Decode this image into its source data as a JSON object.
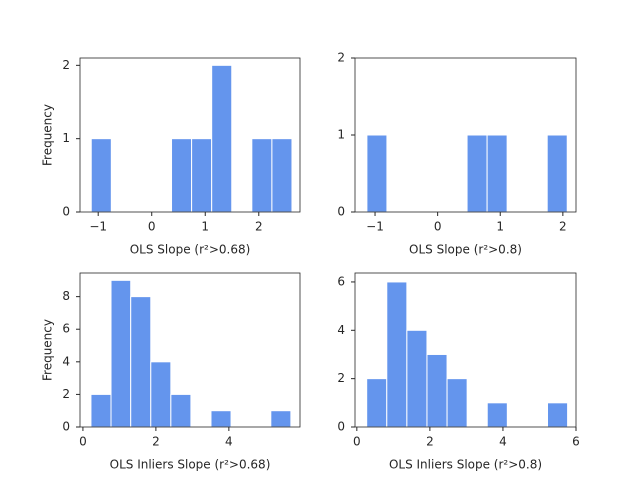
{
  "chart_data": [
    {
      "type": "histogram",
      "xlabel": "OLS Slope (r²>0.68)",
      "ylabel": "Frequency",
      "color": "#6495ed",
      "bins": [
        -1.13,
        -0.755,
        -0.38,
        -0.005,
        0.37,
        0.745,
        1.12,
        1.495,
        1.87,
        2.245,
        2.62
      ],
      "counts": [
        1,
        0,
        0,
        0,
        1,
        1,
        2,
        0,
        1,
        1
      ],
      "xlim": [
        -1.34,
        2.77
      ],
      "ylim": [
        0,
        2.1
      ],
      "xticks": [
        {
          "value": -1,
          "label": "−1"
        },
        0,
        1,
        2
      ],
      "yticks": [
        0,
        1,
        2
      ]
    },
    {
      "type": "histogram",
      "xlabel": "OLS Slope (r²>0.8)",
      "color": "#6495ed",
      "bins": [
        -1.13,
        -0.81,
        -0.49,
        -0.17,
        0.15,
        0.47,
        0.79,
        1.11,
        1.43,
        1.75,
        2.07
      ],
      "counts": [
        1,
        0,
        0,
        0,
        0,
        1,
        1,
        0,
        0,
        1
      ],
      "xlim": [
        -1.32,
        2.21
      ],
      "ylim": [
        0,
        2
      ],
      "xticks": [
        {
          "value": -1,
          "label": "−1"
        },
        0,
        1,
        2
      ],
      "yticks": [
        0,
        1,
        2
      ]
    },
    {
      "type": "histogram",
      "xlabel": "OLS Inliers Slope (r²>0.68)",
      "ylabel": "Frequency",
      "color": "#6495ed",
      "bins": [
        0.22,
        0.77,
        1.31,
        1.86,
        2.41,
        2.96,
        3.51,
        4.06,
        4.6,
        5.15,
        5.7
      ],
      "counts": [
        2,
        9,
        8,
        4,
        2,
        0,
        1,
        0,
        0,
        1
      ],
      "xlim": [
        -0.08,
        5.95
      ],
      "ylim": [
        0,
        9.45
      ],
      "xticks": [
        0,
        2,
        4
      ],
      "yticks": [
        0,
        2,
        4,
        6,
        8
      ]
    },
    {
      "type": "histogram",
      "xlabel": "OLS Inliers Slope (r²>0.8)",
      "color": "#6495ed",
      "bins": [
        0.27,
        0.82,
        1.37,
        1.92,
        2.47,
        3.02,
        3.57,
        4.12,
        4.67,
        5.22,
        5.77
      ],
      "counts": [
        2,
        6,
        4,
        3,
        2,
        0,
        1,
        0,
        0,
        1
      ],
      "xlim": [
        -0.05,
        6.0
      ],
      "ylim": [
        0,
        6.37
      ],
      "xticks": [
        0,
        2,
        4,
        6
      ],
      "yticks": [
        0,
        2,
        4,
        6
      ]
    }
  ]
}
